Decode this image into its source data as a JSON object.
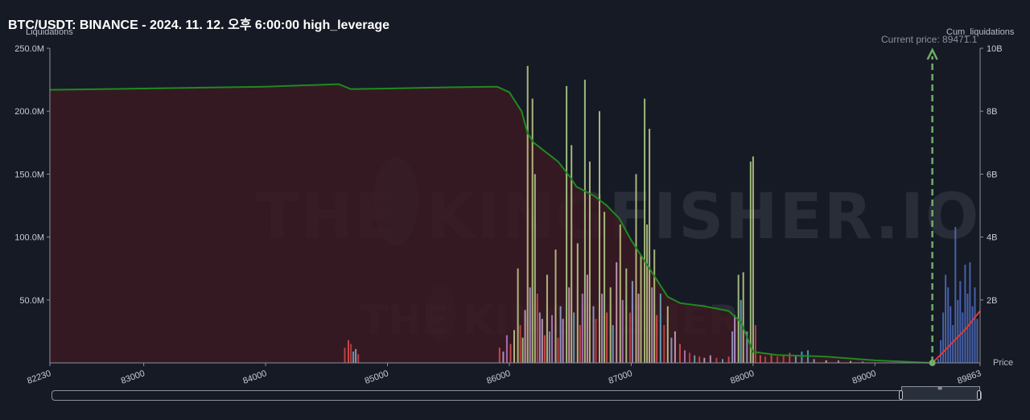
{
  "title": "BTC/USDT: BINANCE - 2024. 11. 12. 오후 6:00:00 high_leverage",
  "left_axis_title": "Liquidations",
  "right_axis_title": "Cum_liquidations",
  "x_axis_title": "Price",
  "current_price_label": "Current price: 89471.1",
  "watermark": "THE KINGFISHER.IO",
  "colors": {
    "background": "#161a25",
    "cumulative_line": "#1f8a1f",
    "cumulative_fill": "#3a1a22",
    "current_cum_line": "#e03a3a",
    "current_price_marker": "#6fae6a",
    "long_liq_bars": "#4f6fc0"
  },
  "chart_data": {
    "type": "bar",
    "title": "BTC/USDT: BINANCE - 2024. 11. 12. 오후 6:00:00 high_leverage",
    "xlabel": "Price",
    "ylabel": "Liquidations",
    "y2label": "Cum_liquidations",
    "xlim": [
      82230,
      89863
    ],
    "ylim": [
      0,
      250000000
    ],
    "y2lim": [
      0,
      10000000000
    ],
    "x_ticks": [
      "82230",
      "83000",
      "84000",
      "85000",
      "86000",
      "87000",
      "88000",
      "89000",
      "89863"
    ],
    "y_ticks": [
      "250.0M",
      "200.0M",
      "150.0M",
      "100.0M",
      "50.0M"
    ],
    "y2_ticks": [
      "10B",
      "8B",
      "6B",
      "4B",
      "2B"
    ],
    "current_price": 89471.1,
    "grid": false,
    "bars": [
      [
        84650,
        12000000,
        "#d04545"
      ],
      [
        84680,
        18000000,
        "#e05050"
      ],
      [
        84700,
        15000000,
        "#c84040"
      ],
      [
        84720,
        9000000,
        "#6fb0c8"
      ],
      [
        84740,
        11000000,
        "#9aa6d8"
      ],
      [
        84760,
        7000000,
        "#d04545"
      ],
      [
        85920,
        12000000,
        "#e05050"
      ],
      [
        85950,
        9000000,
        "#c8a0d8"
      ],
      [
        85980,
        22000000,
        "#b87cc8"
      ],
      [
        86010,
        15000000,
        "#e05050"
      ],
      [
        86040,
        26000000,
        "#c8d08a"
      ],
      [
        86070,
        75000000,
        "#c8d08a"
      ],
      [
        86090,
        30000000,
        "#d04545"
      ],
      [
        86110,
        20000000,
        "#b4d68c"
      ],
      [
        86130,
        42000000,
        "#d8a8c0"
      ],
      [
        86150,
        236000000,
        "#c8d08a"
      ],
      [
        86170,
        60000000,
        "#b8a0d8"
      ],
      [
        86190,
        210000000,
        "#c8d08a"
      ],
      [
        86210,
        150000000,
        "#b4d68c"
      ],
      [
        86230,
        55000000,
        "#d04545"
      ],
      [
        86250,
        40000000,
        "#9aa6d8"
      ],
      [
        86270,
        35000000,
        "#d8a8c0"
      ],
      [
        86290,
        22000000,
        "#e05050"
      ],
      [
        86310,
        70000000,
        "#c8d08a"
      ],
      [
        86330,
        25000000,
        "#6fb0c8"
      ],
      [
        86350,
        38000000,
        "#b87cc8"
      ],
      [
        86380,
        90000000,
        "#c8d08a"
      ],
      [
        86400,
        20000000,
        "#d04545"
      ],
      [
        86420,
        45000000,
        "#9aa6d8"
      ],
      [
        86440,
        35000000,
        "#c8a0d8"
      ],
      [
        86470,
        220000000,
        "#b4d68c"
      ],
      [
        86490,
        60000000,
        "#d8a8c0"
      ],
      [
        86510,
        173000000,
        "#c8d08a"
      ],
      [
        86530,
        40000000,
        "#6fb0c8"
      ],
      [
        86560,
        95000000,
        "#c8d08a"
      ],
      [
        86580,
        30000000,
        "#e05050"
      ],
      [
        86600,
        55000000,
        "#b87cc8"
      ],
      [
        86620,
        225000000,
        "#b4d68c"
      ],
      [
        86640,
        70000000,
        "#d8a8c0"
      ],
      [
        86660,
        160000000,
        "#c8d08a"
      ],
      [
        86690,
        45000000,
        "#9aa6d8"
      ],
      [
        86710,
        35000000,
        "#d04545"
      ],
      [
        86740,
        200000000,
        "#c8d08a"
      ],
      [
        86760,
        55000000,
        "#b8a0d8"
      ],
      [
        86780,
        120000000,
        "#b4d68c"
      ],
      [
        86800,
        40000000,
        "#e05050"
      ],
      [
        86830,
        60000000,
        "#c8d08a"
      ],
      [
        86850,
        30000000,
        "#6fb0c8"
      ],
      [
        86880,
        80000000,
        "#d8a8c0"
      ],
      [
        86910,
        110000000,
        "#c8d08a"
      ],
      [
        86930,
        50000000,
        "#b87cc8"
      ],
      [
        86960,
        75000000,
        "#b4d68c"
      ],
      [
        86990,
        40000000,
        "#d04545"
      ],
      [
        87010,
        65000000,
        "#9aa6d8"
      ],
      [
        87040,
        150000000,
        "#c8d08a"
      ],
      [
        87060,
        55000000,
        "#d8a8c0"
      ],
      [
        87080,
        85000000,
        "#c8d08a"
      ],
      [
        87110,
        210000000,
        "#b4d68c"
      ],
      [
        87130,
        110000000,
        "#c8d08a"
      ],
      [
        87150,
        186000000,
        "#c8d08a"
      ],
      [
        87170,
        60000000,
        "#b8a0d8"
      ],
      [
        87190,
        90000000,
        "#c8d08a"
      ],
      [
        87210,
        38000000,
        "#e05050"
      ],
      [
        87240,
        55000000,
        "#6fb0c8"
      ],
      [
        87270,
        30000000,
        "#d04545"
      ],
      [
        87300,
        45000000,
        "#c8d08a"
      ],
      [
        87330,
        20000000,
        "#9aa6d8"
      ],
      [
        87360,
        25000000,
        "#d8a8c0"
      ],
      [
        87400,
        15000000,
        "#e05050"
      ],
      [
        87440,
        10000000,
        "#b87cc8"
      ],
      [
        87480,
        8000000,
        "#d04545"
      ],
      [
        87520,
        6000000,
        "#6fb0c8"
      ],
      [
        87560,
        5000000,
        "#e05050"
      ],
      [
        87600,
        4000000,
        "#d8a8c0"
      ],
      [
        87650,
        6000000,
        "#c8a0d8"
      ],
      [
        87700,
        4000000,
        "#d04545"
      ],
      [
        87750,
        3000000,
        "#6fb0c8"
      ],
      [
        87800,
        5000000,
        "#e05050"
      ],
      [
        87830,
        25000000,
        "#9aa6d8"
      ],
      [
        87850,
        38000000,
        "#c8a0d8"
      ],
      [
        87880,
        70000000,
        "#b4d68c"
      ],
      [
        87900,
        50000000,
        "#6fb0c8"
      ],
      [
        87920,
        72000000,
        "#c8d08a"
      ],
      [
        87950,
        25000000,
        "#9aa6d8"
      ],
      [
        87980,
        160000000,
        "#b4d68c"
      ],
      [
        88000,
        164000000,
        "#c8d08a"
      ],
      [
        88020,
        30000000,
        "#d04545"
      ],
      [
        88060,
        6000000,
        "#e05050"
      ],
      [
        88100,
        5000000,
        "#d04545"
      ],
      [
        88150,
        7000000,
        "#e05050"
      ],
      [
        88200,
        5000000,
        "#c84040"
      ],
      [
        88250,
        6000000,
        "#d04545"
      ],
      [
        88300,
        8000000,
        "#e05050"
      ],
      [
        88350,
        6000000,
        "#6fb0c8"
      ],
      [
        88400,
        9000000,
        "#3ab8c8"
      ],
      [
        88450,
        10000000,
        "#3ab8c8"
      ],
      [
        88500,
        3000000,
        "#9aa6d8"
      ],
      [
        88600,
        2000000,
        "#b4d68c"
      ],
      [
        88700,
        2000000,
        "#9aa6d8"
      ],
      [
        88800,
        1500000,
        "#b4d68c"
      ],
      [
        88900,
        1000000,
        "#9aa6d8"
      ],
      [
        89520,
        3000000,
        "#4f6fc0"
      ],
      [
        89540,
        18000000,
        "#4f6fc0"
      ],
      [
        89560,
        40000000,
        "#4f6fc0"
      ],
      [
        89580,
        70000000,
        "#4f6fc0"
      ],
      [
        89600,
        60000000,
        "#4f6fc0"
      ],
      [
        89620,
        45000000,
        "#4f6fc0"
      ],
      [
        89640,
        30000000,
        "#4f6fc0"
      ],
      [
        89660,
        108000000,
        "#4f6fc0"
      ],
      [
        89680,
        50000000,
        "#4f6fc0"
      ],
      [
        89700,
        65000000,
        "#4f6fc0"
      ],
      [
        89720,
        40000000,
        "#4f6fc0"
      ],
      [
        89740,
        78000000,
        "#4f6fc0"
      ],
      [
        89760,
        55000000,
        "#4f6fc0"
      ],
      [
        89780,
        80000000,
        "#4f6fc0"
      ],
      [
        89800,
        45000000,
        "#4f6fc0"
      ],
      [
        89820,
        60000000,
        "#4f6fc0"
      ],
      [
        89840,
        35000000,
        "#4f6fc0"
      ]
    ],
    "series": [
      {
        "kind": "cumulative_short",
        "x": [
          82230,
          83000,
          84000,
          84600,
          84700,
          85000,
          85500,
          85900,
          86000,
          86100,
          86150,
          86200,
          86400,
          86500,
          86550,
          86700,
          86800,
          86900,
          87000,
          87100,
          87200,
          87300,
          87400,
          87600,
          87800,
          87900,
          88000,
          88200,
          88600,
          89000,
          89471
        ],
        "y": [
          8680000000,
          8720000000,
          8780000000,
          8860000000,
          8700000000,
          8720000000,
          8760000000,
          8780000000,
          8600000000,
          8000000000,
          7300000000,
          7000000000,
          6400000000,
          5900000000,
          5600000000,
          5300000000,
          5000000000,
          4600000000,
          3900000000,
          3300000000,
          2700000000,
          2100000000,
          1900000000,
          1800000000,
          1650000000,
          1300000000,
          350000000,
          250000000,
          200000000,
          80000000,
          0
        ]
      },
      {
        "kind": "cumulative_long",
        "x": [
          89471,
          89550,
          89600,
          89650,
          89700,
          89750,
          89800,
          89863
        ],
        "y": [
          0,
          300000000,
          500000000,
          700000000,
          900000000,
          1100000000,
          1350000000,
          1650000000
        ]
      }
    ]
  }
}
